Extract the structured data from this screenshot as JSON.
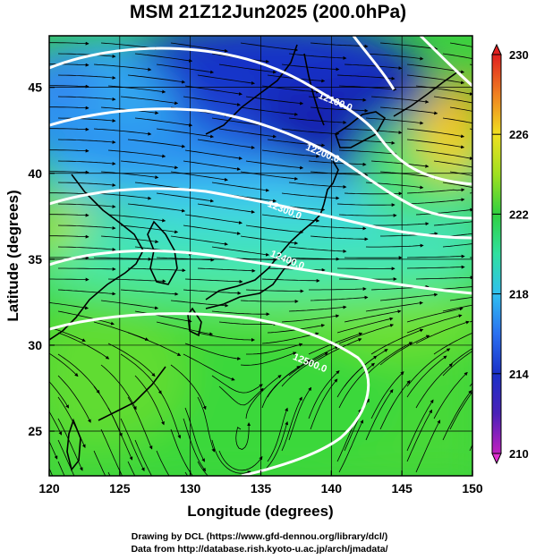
{
  "title": "MSM 21Z12Jun2025 (200.0hPa)",
  "map": {
    "xlabel": "Longitude (degrees)",
    "ylabel": "Latitude  (degrees)",
    "lon_range": [
      120,
      150
    ],
    "lat_range": [
      22.4,
      48
    ],
    "lon_ticks": [
      "120",
      "125",
      "130",
      "135",
      "140",
      "145",
      "150"
    ],
    "lat_ticks": [
      "25",
      "30",
      "35",
      "40",
      "45"
    ],
    "contours": [
      {
        "label": "12100.0",
        "lon": 140.2,
        "lat": 44.0
      },
      {
        "label": "12200.0",
        "lon": 139.3,
        "lat": 41.0
      },
      {
        "label": "12300.0",
        "lon": 136.6,
        "lat": 37.7
      },
      {
        "label": "12400.0",
        "lon": 136.8,
        "lat": 34.8
      },
      {
        "label": "12500.0",
        "lon": 138.4,
        "lat": 28.8
      }
    ]
  },
  "colorbar": {
    "min": 210,
    "max": 230,
    "ticks": [
      "230",
      "226",
      "222",
      "218",
      "214",
      "210"
    ]
  },
  "credits": {
    "line1": "Drawing by DCL (https://www.gfd-dennou.org/library/dcl/)",
    "line2": "Data from http://database.rish.kyoto-u.ac.jp/arch/jmadata/"
  }
}
